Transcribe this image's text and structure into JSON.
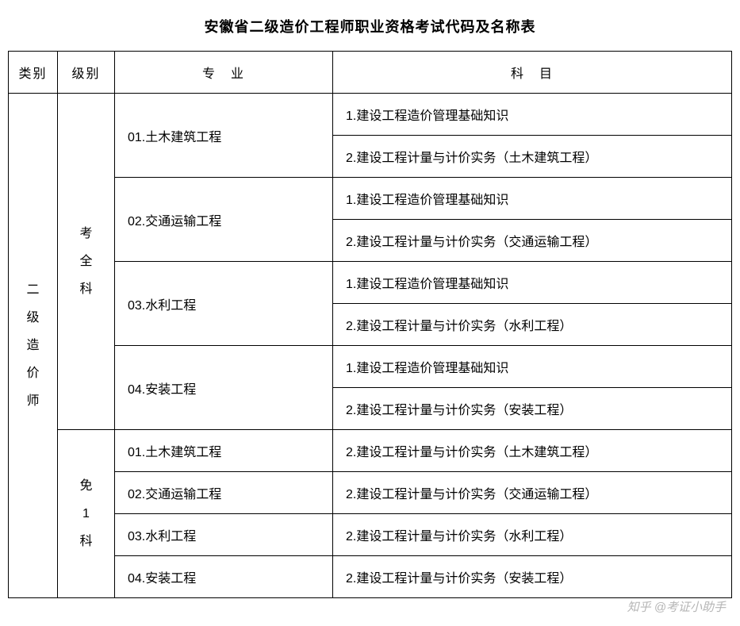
{
  "title": "安徽省二级造价工程师职业资格考试代码及名称表",
  "headers": {
    "category": "类别",
    "level": "级别",
    "major": "专　业",
    "subject": "科　目"
  },
  "category_label": "二级造价师",
  "levels": [
    {
      "label": "考全科",
      "majors": [
        {
          "name": "01.土木建筑工程",
          "subjects": [
            "1.建设工程造价管理基础知识",
            "2.建设工程计量与计价实务（土木建筑工程）"
          ]
        },
        {
          "name": "02.交通运输工程",
          "subjects": [
            "1.建设工程造价管理基础知识",
            "2.建设工程计量与计价实务（交通运输工程）"
          ]
        },
        {
          "name": "03.水利工程",
          "subjects": [
            "1.建设工程造价管理基础知识",
            "2.建设工程计量与计价实务（水利工程）"
          ]
        },
        {
          "name": "04.安装工程",
          "subjects": [
            "1.建设工程造价管理基础知识",
            "2.建设工程计量与计价实务（安装工程）"
          ]
        }
      ]
    },
    {
      "label": "免1科",
      "majors": [
        {
          "name": "01.土木建筑工程",
          "subjects": [
            "2.建设工程计量与计价实务（土木建筑工程）"
          ]
        },
        {
          "name": "02.交通运输工程",
          "subjects": [
            "2.建设工程计量与计价实务（交通运输工程）"
          ]
        },
        {
          "name": "03.水利工程",
          "subjects": [
            "2.建设工程计量与计价实务（水利工程）"
          ]
        },
        {
          "name": "04.安装工程",
          "subjects": [
            "2.建设工程计量与计价实务（安装工程）"
          ]
        }
      ]
    }
  ],
  "watermark": "知乎 @考证小助手",
  "style": {
    "border_color": "#000000",
    "text_color": "#000000",
    "background": "#ffffff",
    "title_fontsize": 18,
    "cell_fontsize": 16,
    "watermark_color": "rgba(120,120,120,0.55)"
  }
}
